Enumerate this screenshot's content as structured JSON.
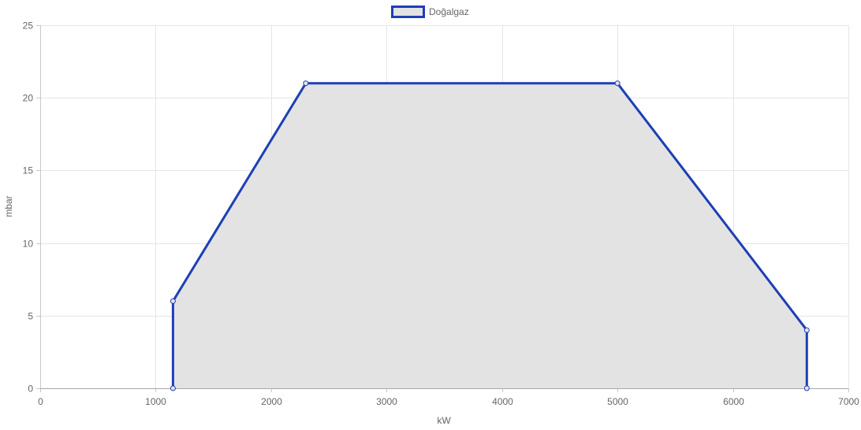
{
  "chart_data": {
    "type": "area",
    "title": "",
    "xlabel": "kW",
    "ylabel": "mbar",
    "xlim": [
      0,
      7000
    ],
    "ylim": [
      0,
      25
    ],
    "x_ticks": [
      0,
      1000,
      2000,
      3000,
      4000,
      5000,
      6000,
      7000
    ],
    "y_ticks": [
      0,
      5,
      10,
      15,
      20,
      25
    ],
    "x_tick_labels": [
      "0",
      "1000",
      "2000",
      "3000",
      "4000",
      "5000",
      "6000",
      "7000"
    ],
    "y_tick_labels": [
      "0",
      "5",
      "10",
      "15",
      "20",
      "25"
    ],
    "grid": true,
    "legend_position": "top-center",
    "series": [
      {
        "name": "Doğalgaz",
        "color": "#1d3fb5",
        "fill_color": "#e3e3e4",
        "points": [
          {
            "x": 1150,
            "y": 0
          },
          {
            "x": 1150,
            "y": 6
          },
          {
            "x": 2300,
            "y": 21
          },
          {
            "x": 5000,
            "y": 21
          },
          {
            "x": 6640,
            "y": 4
          },
          {
            "x": 6640,
            "y": 0
          }
        ]
      }
    ]
  }
}
